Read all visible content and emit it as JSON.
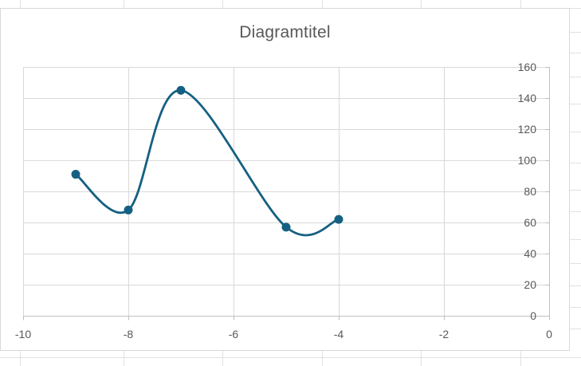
{
  "chart_data": {
    "type": "scatter",
    "mode": "smooth-line-with-markers",
    "title": "Diagramtitel",
    "xlabel": "",
    "ylabel": "",
    "xlim": [
      -10,
      0
    ],
    "ylim": [
      0,
      160
    ],
    "x_ticks": [
      -10,
      -8,
      -6,
      -4,
      -2,
      0
    ],
    "y_ticks": [
      0,
      20,
      40,
      60,
      80,
      100,
      120,
      140,
      160
    ],
    "y_axis_side": "right",
    "grid": true,
    "series": [
      {
        "x": [
          -9,
          -8,
          -7,
          -5,
          -4
        ],
        "y": [
          91,
          68,
          145,
          57,
          62
        ],
        "color": "#156082"
      }
    ]
  }
}
